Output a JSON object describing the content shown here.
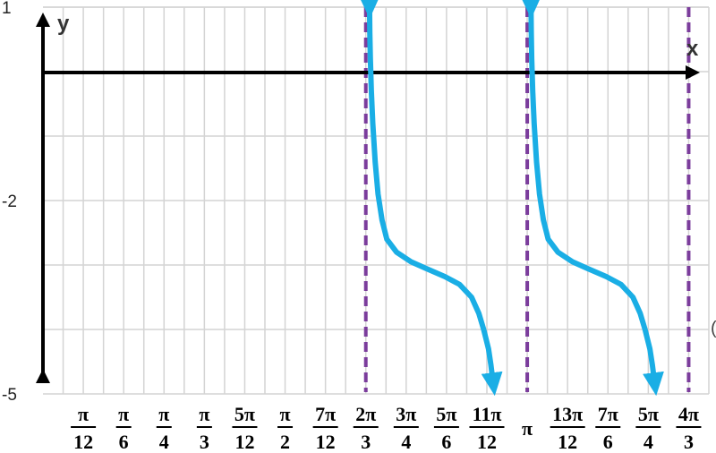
{
  "chart_data": {
    "type": "line",
    "xlabel": "x",
    "ylabel": "y",
    "x_unit": "pi",
    "xlim": [
      0,
      1.375
    ],
    "ylim": [
      -5,
      1
    ],
    "y_ticks": [
      {
        "value": 1,
        "label": "1"
      },
      {
        "value": -2,
        "label": "-2"
      },
      {
        "value": -5,
        "label": "-5"
      }
    ],
    "x_ticks": [
      {
        "value": 0.083333,
        "num": "π",
        "den": "12"
      },
      {
        "value": 0.166667,
        "num": "π",
        "den": "6"
      },
      {
        "value": 0.25,
        "num": "π",
        "den": "4"
      },
      {
        "value": 0.333333,
        "num": "π",
        "den": "3"
      },
      {
        "value": 0.416667,
        "num": "5π",
        "den": "12"
      },
      {
        "value": 0.5,
        "num": "π",
        "den": "2"
      },
      {
        "value": 0.583333,
        "num": "7π",
        "den": "12"
      },
      {
        "value": 0.666667,
        "num": "2π",
        "den": "3"
      },
      {
        "value": 0.75,
        "num": "3π",
        "den": "4"
      },
      {
        "value": 0.833333,
        "num": "5π",
        "den": "6"
      },
      {
        "value": 0.916667,
        "num": "11π",
        "den": "12"
      },
      {
        "value": 1.0,
        "num": "π",
        "den": ""
      },
      {
        "value": 1.083333,
        "num": "13π",
        "den": "12"
      },
      {
        "value": 1.166667,
        "num": "7π",
        "den": "6"
      },
      {
        "value": 1.25,
        "num": "5π",
        "den": "4"
      },
      {
        "value": 1.333333,
        "num": "4π",
        "den": "3"
      }
    ],
    "asymptotes": [
      0.666667,
      1.0,
      1.333333
    ],
    "grid": true,
    "series": [
      {
        "color": "#1aaee5",
        "points": [
          [
            0.6744,
            1.0
          ],
          [
            0.675,
            0.6
          ],
          [
            0.676,
            0.2
          ],
          [
            0.678,
            -0.3
          ],
          [
            0.681,
            -0.8
          ],
          [
            0.686,
            -1.4
          ],
          [
            0.692,
            -1.9
          ],
          [
            0.7,
            -2.3
          ],
          [
            0.71,
            -2.6
          ],
          [
            0.73,
            -2.8
          ],
          [
            0.76,
            -2.95
          ],
          [
            0.79,
            -3.05
          ],
          [
            0.83,
            -3.18
          ],
          [
            0.86,
            -3.3
          ],
          [
            0.885,
            -3.5
          ],
          [
            0.9,
            -3.75
          ],
          [
            0.91,
            -4.0
          ],
          [
            0.92,
            -4.3
          ],
          [
            0.925,
            -4.55
          ],
          [
            0.93,
            -4.85
          ]
        ]
      },
      {
        "color": "#1aaee5",
        "points": [
          [
            1.0077,
            1.0
          ],
          [
            1.0083,
            0.6
          ],
          [
            1.0093,
            0.2
          ],
          [
            1.0113,
            -0.3
          ],
          [
            1.0143,
            -0.8
          ],
          [
            1.0193,
            -1.4
          ],
          [
            1.0253,
            -1.9
          ],
          [
            1.0333,
            -2.3
          ],
          [
            1.0433,
            -2.6
          ],
          [
            1.0633,
            -2.8
          ],
          [
            1.0933,
            -2.95
          ],
          [
            1.1233,
            -3.05
          ],
          [
            1.1633,
            -3.18
          ],
          [
            1.1933,
            -3.3
          ],
          [
            1.2183,
            -3.5
          ],
          [
            1.2333,
            -3.75
          ],
          [
            1.2433,
            -4.0
          ],
          [
            1.2533,
            -4.3
          ],
          [
            1.2583,
            -4.55
          ],
          [
            1.2633,
            -4.85
          ]
        ]
      }
    ],
    "colors": {
      "curve": "#1aaee5",
      "asymptote": "#7b3d9c",
      "grid": "#d4d4d4",
      "axis": "#000000"
    },
    "edge_glyph": "("
  }
}
